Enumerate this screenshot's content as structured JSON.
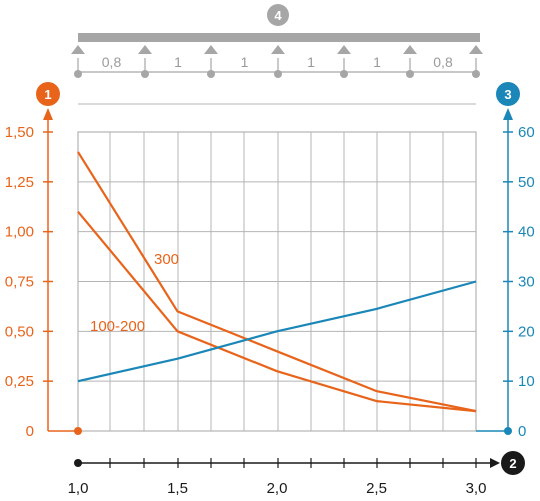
{
  "badges": {
    "left_axis": "1",
    "right_axis": "3",
    "x_axis": "2",
    "beam": "4"
  },
  "beam_spans": [
    "0,8",
    "1",
    "1",
    "1",
    "1",
    "0,8"
  ],
  "colors": {
    "orange": "#e8641b",
    "blue": "#1a87b8",
    "grid": "#b4b4b4",
    "black": "#1a1a1a",
    "beam": "#a6a6a6"
  },
  "chart_data": {
    "type": "line",
    "x_ticks": [
      "1,0",
      "1,5",
      "2,0",
      "2,5",
      "3,0"
    ],
    "xlim": [
      1.0,
      3.0
    ],
    "y_left_ticks": [
      "0",
      "0,25",
      "0,50",
      "0,75",
      "1,00",
      "1,25",
      "1,50"
    ],
    "ylim_left": [
      0,
      1.5
    ],
    "y_right_ticks": [
      "0",
      "10",
      "20",
      "30",
      "40",
      "50",
      "60"
    ],
    "ylim_right": [
      0,
      60
    ],
    "grid": true,
    "series": [
      {
        "name": "300",
        "axis": "left",
        "color": "#e8641b",
        "x": [
          1.0,
          1.5,
          2.0,
          2.5,
          3.0
        ],
        "y": [
          1.4,
          0.6,
          0.4,
          0.2,
          0.1
        ]
      },
      {
        "name": "100-200",
        "axis": "left",
        "color": "#e8641b",
        "x": [
          1.0,
          1.5,
          2.0,
          2.5,
          3.0
        ],
        "y": [
          1.1,
          0.5,
          0.3,
          0.15,
          0.1
        ]
      },
      {
        "axis": "right",
        "color": "#1a87b8",
        "x": [
          1.0,
          1.5,
          2.0,
          2.5,
          3.0
        ],
        "y": [
          10,
          14.5,
          20,
          24.5,
          30
        ]
      }
    ]
  }
}
